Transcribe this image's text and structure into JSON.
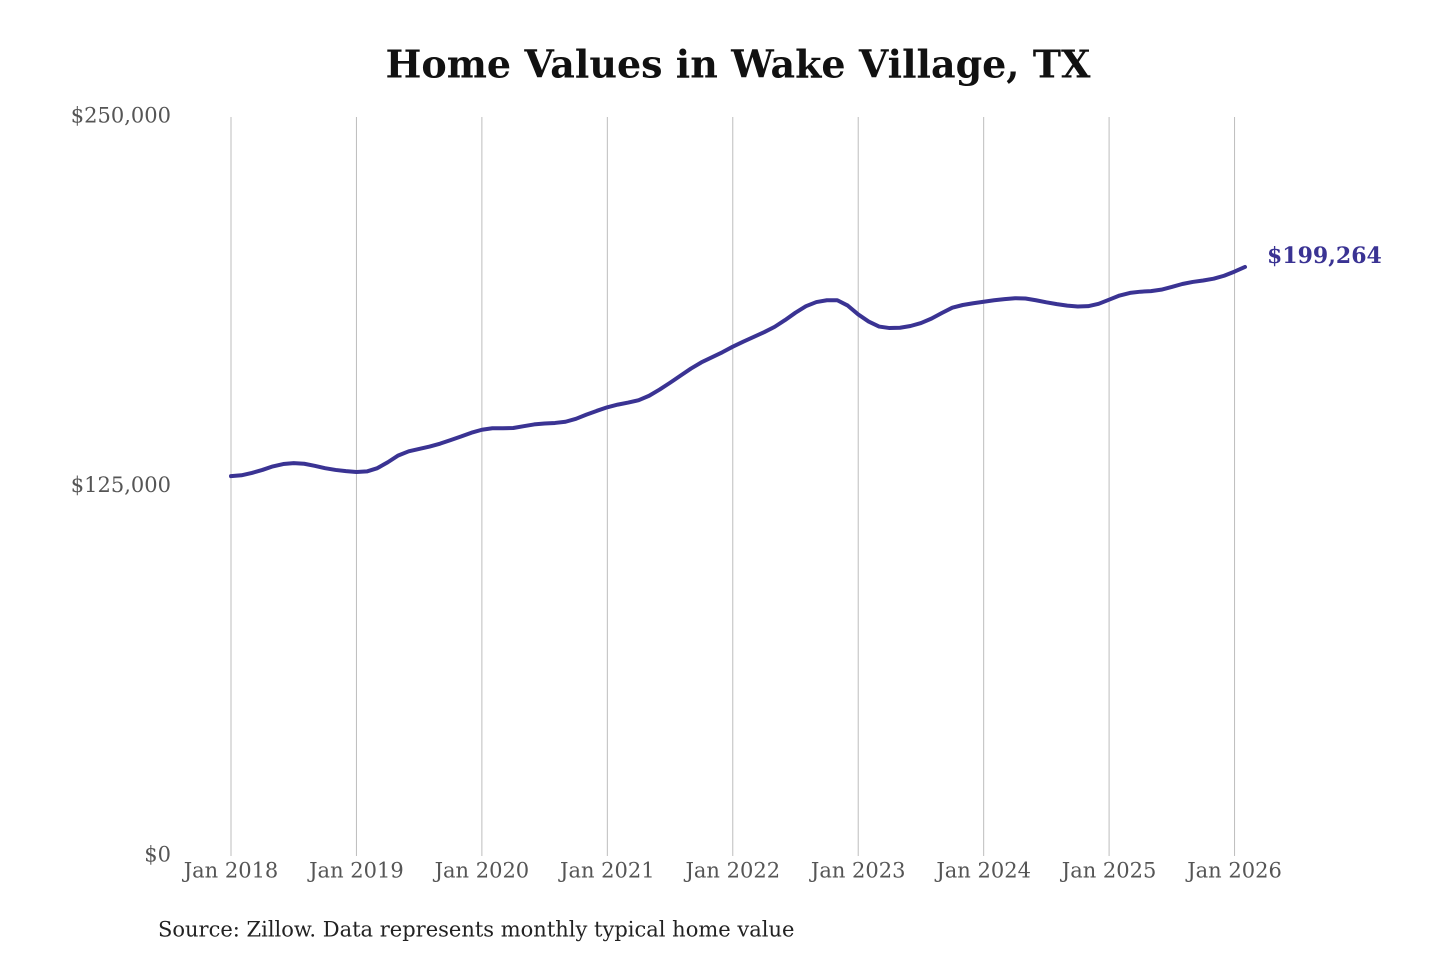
{
  "chart_data": {
    "type": "line",
    "title": "Home Values in Wake Village, TX",
    "source": "Source: Zillow. Data represents monthly typical home value",
    "x": [
      "2018-01",
      "2018-02",
      "2018-03",
      "2018-04",
      "2018-05",
      "2018-06",
      "2018-07",
      "2018-08",
      "2018-09",
      "2018-10",
      "2018-11",
      "2018-12",
      "2019-01",
      "2019-02",
      "2019-03",
      "2019-04",
      "2019-05",
      "2019-06",
      "2019-07",
      "2019-08",
      "2019-09",
      "2019-10",
      "2019-11",
      "2019-12",
      "2020-01",
      "2020-02",
      "2020-03",
      "2020-04",
      "2020-05",
      "2020-06",
      "2020-07",
      "2020-08",
      "2020-09",
      "2020-10",
      "2020-11",
      "2020-12",
      "2021-01",
      "2021-02",
      "2021-03",
      "2021-04",
      "2021-05",
      "2021-06",
      "2021-07",
      "2021-08",
      "2021-09",
      "2021-10",
      "2021-11",
      "2021-12",
      "2022-01",
      "2022-02",
      "2022-03",
      "2022-04",
      "2022-05",
      "2022-06",
      "2022-07",
      "2022-08",
      "2022-09",
      "2022-10",
      "2022-11",
      "2022-12",
      "2023-01",
      "2023-02",
      "2023-03",
      "2023-04",
      "2023-05",
      "2023-06",
      "2023-07",
      "2023-08",
      "2023-09",
      "2023-10",
      "2023-11",
      "2023-12",
      "2024-01",
      "2024-02",
      "2024-03",
      "2024-04",
      "2024-05",
      "2024-06",
      "2024-07",
      "2024-08",
      "2024-09",
      "2024-10",
      "2024-11",
      "2024-12",
      "2025-01",
      "2025-02",
      "2025-03",
      "2025-04",
      "2025-05",
      "2025-06",
      "2025-07",
      "2025-08",
      "2025-09",
      "2025-10",
      "2025-11",
      "2025-12",
      "2026-01",
      "2026-02"
    ],
    "series": [
      {
        "name": "Home value",
        "color": "#3a3393",
        "values": [
          128500,
          128800,
          129600,
          130600,
          131800,
          132600,
          132900,
          132700,
          132000,
          131200,
          130600,
          130200,
          129900,
          130100,
          131200,
          133200,
          135500,
          136900,
          137700,
          138500,
          139500,
          140700,
          141900,
          143200,
          144200,
          144700,
          144700,
          144800,
          145400,
          146000,
          146300,
          146500,
          146900,
          147900,
          149300,
          150600,
          151800,
          152700,
          153400,
          154200,
          155700,
          157800,
          160100,
          162500,
          164900,
          167000,
          168700,
          170400,
          172300,
          174000,
          175600,
          177200,
          179000,
          181300,
          183800,
          186000,
          187400,
          188000,
          188000,
          186200,
          183200,
          180800,
          179100,
          178600,
          178700,
          179300,
          180300,
          181800,
          183700,
          185500,
          186400,
          187000,
          187500,
          188000,
          188400,
          188700,
          188600,
          188000,
          187300,
          186700,
          186200,
          185900,
          186000,
          186800,
          188200,
          189600,
          190500,
          190900,
          191100,
          191600,
          192500,
          193500,
          194200,
          194700,
          195300,
          196300,
          197700,
          199264
        ],
        "value_labels": [
          null,
          null,
          null,
          null,
          null,
          null,
          null,
          null,
          null,
          null,
          null,
          null,
          null,
          null,
          null,
          null,
          null,
          null,
          null,
          null,
          null,
          null,
          null,
          null,
          null,
          null,
          null,
          null,
          null,
          null,
          null,
          null,
          null,
          null,
          null,
          null,
          null,
          null,
          null,
          null,
          null,
          null,
          null,
          null,
          null,
          null,
          null,
          null,
          null,
          null,
          null,
          null,
          null,
          null,
          null,
          null,
          null,
          null,
          null,
          null,
          null,
          null,
          null,
          null,
          null,
          null,
          null,
          null,
          null,
          null,
          null,
          null,
          null,
          null,
          null,
          null,
          null,
          null,
          null,
          null,
          null,
          null,
          null,
          null,
          null,
          null,
          null,
          null,
          null,
          null,
          null,
          null,
          null,
          null,
          null,
          null,
          null,
          "$199,264"
        ]
      }
    ],
    "xlim": [
      "2018-01",
      "2026-02"
    ],
    "xticks": [
      {
        "value": "2018-01",
        "label": "Jan 2018"
      },
      {
        "value": "2019-01",
        "label": "Jan 2019"
      },
      {
        "value": "2020-01",
        "label": "Jan 2020"
      },
      {
        "value": "2021-01",
        "label": "Jan 2021"
      },
      {
        "value": "2022-01",
        "label": "Jan 2022"
      },
      {
        "value": "2023-01",
        "label": "Jan 2023"
      },
      {
        "value": "2024-01",
        "label": "Jan 2024"
      },
      {
        "value": "2025-01",
        "label": "Jan 2025"
      },
      {
        "value": "2026-01",
        "label": "Jan 2026"
      }
    ],
    "ylim": [
      0,
      250000
    ],
    "yticks": [
      {
        "value": 0,
        "label": "$0"
      },
      {
        "value": 125000,
        "label": "$125,000"
      },
      {
        "value": 250000,
        "label": "$250,000"
      }
    ],
    "grid": "x"
  }
}
